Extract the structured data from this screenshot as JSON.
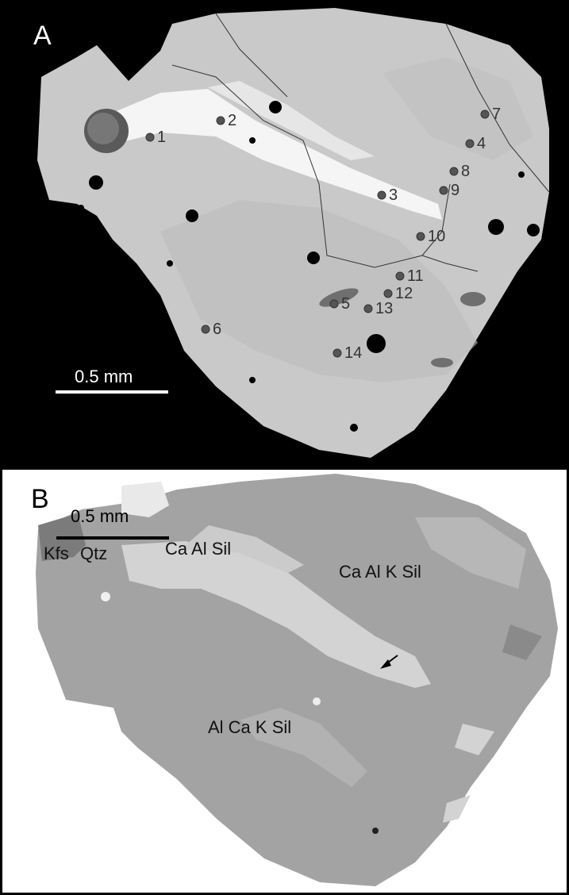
{
  "panel_a": {
    "letter": "A",
    "scale_bar_label": "0.5 mm",
    "spots": [
      {
        "label": "1"
      },
      {
        "label": "2"
      },
      {
        "label": "3"
      },
      {
        "label": "4"
      },
      {
        "label": "5"
      },
      {
        "label": "6"
      },
      {
        "label": "7"
      },
      {
        "label": "8"
      },
      {
        "label": "9"
      },
      {
        "label": "10"
      },
      {
        "label": "11"
      },
      {
        "label": "12"
      },
      {
        "label": "13"
      },
      {
        "label": "14"
      }
    ]
  },
  "panel_b": {
    "letter": "B",
    "scale_bar_label": "0.5 mm",
    "phases": {
      "kfs": "Kfs",
      "qtz": "Qtz",
      "ca_al_sil": "Ca Al Sil",
      "ca_al_k_sil": "Ca Al K Sil",
      "al_ca_k_sil": "Al Ca K Sil"
    }
  },
  "colors": {
    "background_a": "#000000",
    "grain_a": "#c8c8c8",
    "bright_band_a": "#f4f4f4",
    "grain_b": "#a0a0a0",
    "light_phase_b": "#d2d2d2",
    "dark_phase_b": "#7c7c7c"
  }
}
